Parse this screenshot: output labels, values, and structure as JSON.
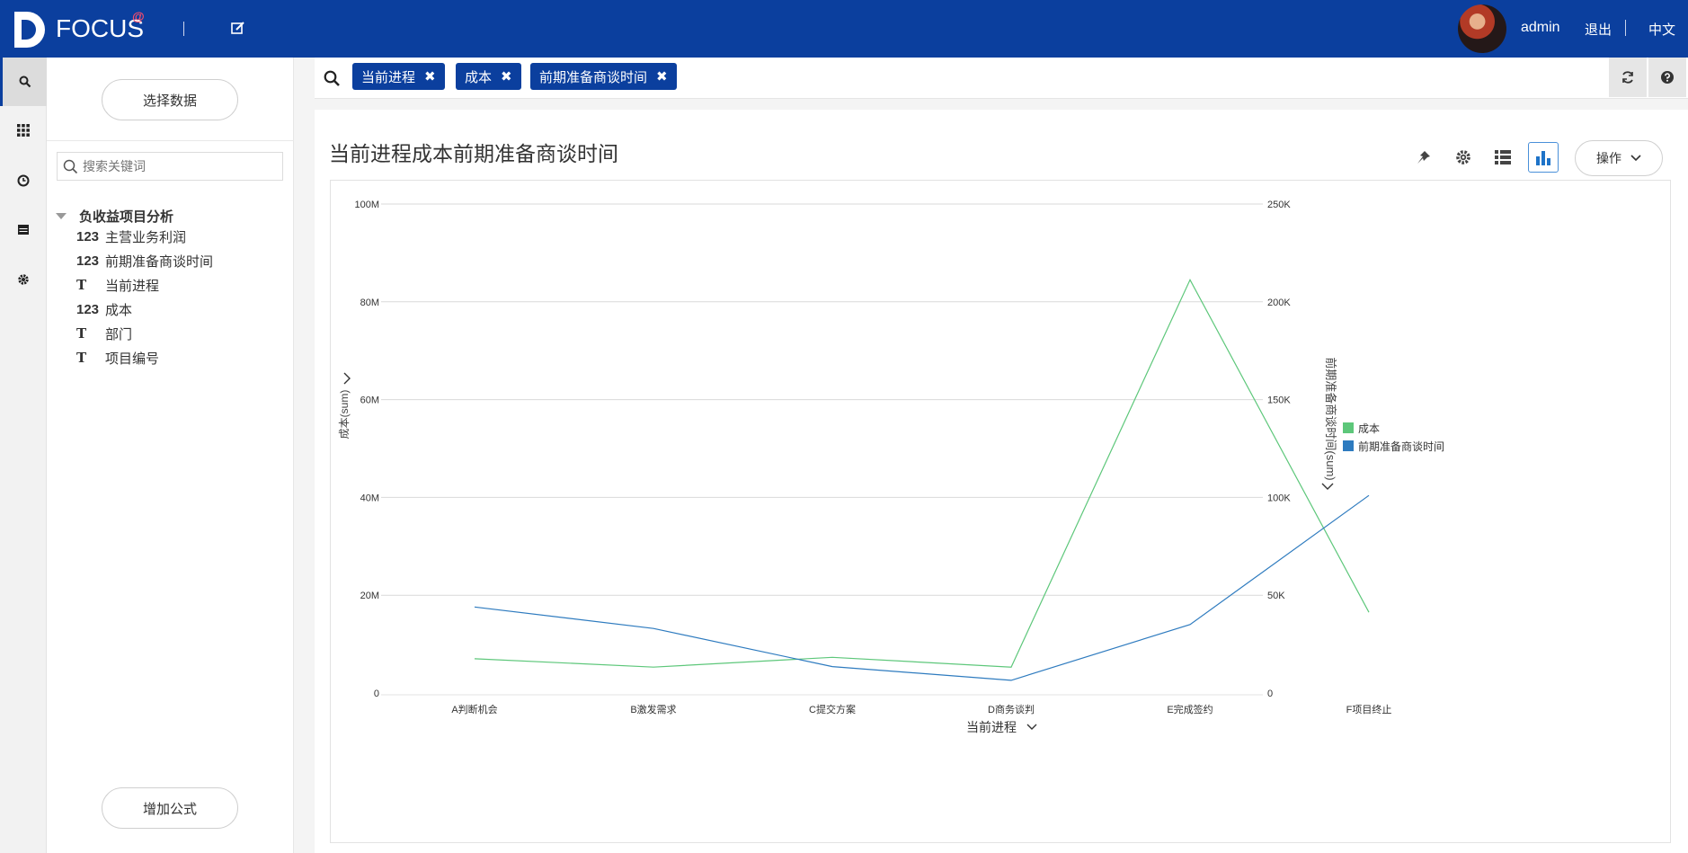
{
  "header": {
    "logo_text": "FOCUS",
    "logo_badge": "@",
    "user": "admin",
    "logout": "退出",
    "language": "中文"
  },
  "nav": {
    "icons": [
      "search-icon",
      "grid-icon",
      "clock-icon",
      "calendar-icon",
      "gear-icon"
    ]
  },
  "sidebar": {
    "select_data": "选择数据",
    "search_placeholder": "搜索关键词",
    "root": "负收益项目分析",
    "fields": [
      {
        "type": "123",
        "label": "主营业务利润"
      },
      {
        "type": "123",
        "label": "前期准备商谈时间"
      },
      {
        "type": "T",
        "label": "当前进程"
      },
      {
        "type": "123",
        "label": "成本"
      },
      {
        "type": "T",
        "label": "部门"
      },
      {
        "type": "T",
        "label": "项目编号"
      }
    ],
    "add_formula": "增加公式"
  },
  "filters": {
    "chips": [
      "当前进程",
      "成本",
      "前期准备商谈时间"
    ],
    "remove_icon": "✖"
  },
  "card": {
    "title": "当前进程成本前期准备商谈时间",
    "ops_label": "操作"
  },
  "colors": {
    "brand": "#0b3f9e",
    "series_cost": "#5dc77a",
    "series_time": "#2e7bbf"
  },
  "chart_data": {
    "type": "line",
    "categories": [
      "A判断机会",
      "B激发需求",
      "C提交方案",
      "D商务谈判",
      "E完成签约",
      "F项目终止"
    ],
    "series": [
      {
        "name": "成本",
        "axis": "left",
        "values": [
          7000000,
          5300000,
          7300000,
          5300000,
          84500000,
          16500000
        ]
      },
      {
        "name": "前期准备商谈时间",
        "axis": "right",
        "values": [
          44000,
          33000,
          13500,
          6500,
          35000,
          101000
        ]
      }
    ],
    "xlabel": "当前进程",
    "ylabel_left": "成本(sum)",
    "ylabel_right": "前期准备商谈时间(sum)",
    "ylim_left": [
      0,
      100000000
    ],
    "ylim_right": [
      0,
      250000
    ],
    "yticks_left": [
      "0",
      "20M",
      "40M",
      "60M",
      "80M",
      "100M"
    ],
    "yticks_right": [
      "0",
      "50K",
      "100K",
      "150K",
      "200K",
      "250K"
    ],
    "grid": true,
    "legend_position": "right"
  }
}
